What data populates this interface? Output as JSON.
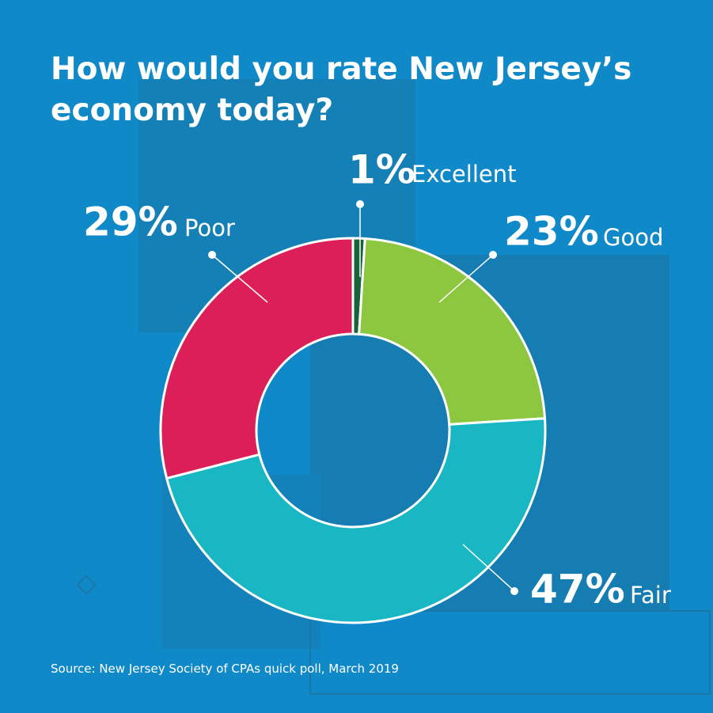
{
  "chart_data": {
    "type": "donut",
    "title": "How would you rate New Jersey’s economy today?",
    "categories": [
      "Excellent",
      "Good",
      "Fair",
      "Poor"
    ],
    "values": [
      1,
      23,
      47,
      29
    ],
    "value_labels": [
      "1%",
      "23%",
      "47%",
      "29%"
    ],
    "colors": [
      "#17633a",
      "#8dc63f",
      "#18b7c3",
      "#dc1f58"
    ],
    "source": "Source: New Jersey Society of CPAs quick poll, March 2019"
  }
}
